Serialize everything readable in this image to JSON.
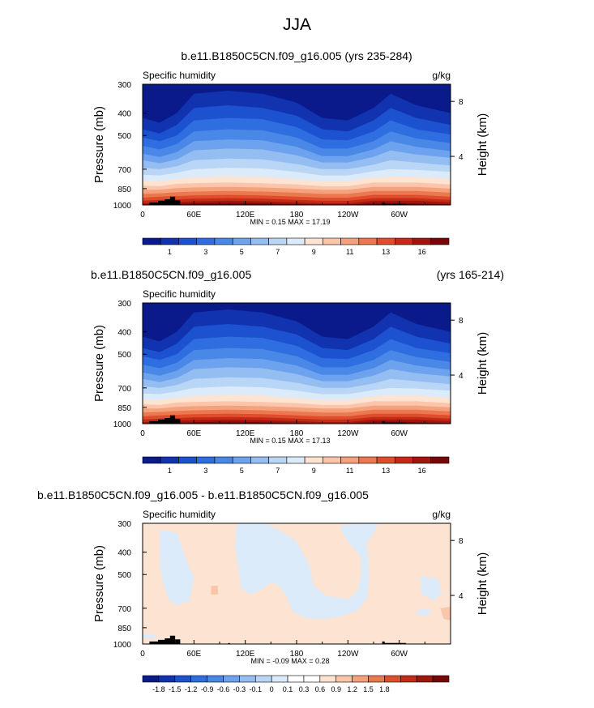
{
  "figure": {
    "title": "JJA"
  },
  "panels": [
    {
      "id": "top",
      "title_center": "b.e11.B1850C5CN.f09_g16.005 (yrs 235-284)",
      "title_left": "",
      "title_right": "",
      "variable": "Specific humidity",
      "units": "g/kg",
      "ylabel": "Pressure (mb)",
      "ylabel_right": "Height (km)",
      "stats": "MIN =  0.15  MAX =  17.19",
      "colorbar": {
        "colors": [
          "#0a1a8a",
          "#1233b0",
          "#1c52cf",
          "#2f6ee0",
          "#4a88e8",
          "#6da3ee",
          "#94bef2",
          "#bad6f6",
          "#dcebfa",
          "#fde3d2",
          "#fac5a9",
          "#f5a17d",
          "#ec7850",
          "#de4e2c",
          "#c52a17",
          "#a0160d",
          "#78070a"
        ],
        "tick_labels": [
          "1",
          "3",
          "5",
          "7",
          "9",
          "11",
          "13",
          "16"
        ],
        "tick_slots": [
          1,
          3,
          5,
          7,
          9,
          11,
          13,
          15
        ]
      }
    },
    {
      "id": "middle",
      "title_center": "",
      "title_left": "b.e11.B1850C5CN.f09_g16.005",
      "title_right": "(yrs 165-214)",
      "variable": "Specific humidity",
      "units": "",
      "ylabel": "Pressure (mb)",
      "ylabel_right": "Height (km)",
      "stats": "MIN =  0.15  MAX =  17.13",
      "colorbar": {
        "colors": [
          "#0a1a8a",
          "#1233b0",
          "#1c52cf",
          "#2f6ee0",
          "#4a88e8",
          "#6da3ee",
          "#94bef2",
          "#bad6f6",
          "#dcebfa",
          "#fde3d2",
          "#fac5a9",
          "#f5a17d",
          "#ec7850",
          "#de4e2c",
          "#c52a17",
          "#a0160d",
          "#78070a"
        ],
        "tick_labels": [
          "1",
          "3",
          "5",
          "7",
          "9",
          "11",
          "13",
          "16"
        ],
        "tick_slots": [
          1,
          3,
          5,
          7,
          9,
          11,
          13,
          15
        ]
      }
    },
    {
      "id": "bottom",
      "title_center": "",
      "title_left": "b.e11.B1850C5CN.f09_g16.005 - b.e11.B1850C5CN.f09_g16.005",
      "title_right": "",
      "variable": "Specific humidity",
      "units": "g/kg",
      "ylabel": "Pressure (mb)",
      "ylabel_right": "Height (km)",
      "stats": "MIN = -0.09  MAX =  0.28",
      "colorbar": {
        "colors": [
          "#0a1a8a",
          "#1233b0",
          "#1c52cf",
          "#2f6ee0",
          "#4a88e8",
          "#6da3ee",
          "#94bef2",
          "#bad6f6",
          "#dcebfa",
          "#ffffff",
          "#ffffff",
          "#fde3d2",
          "#fac5a9",
          "#f5a17d",
          "#ec7850",
          "#de4e2c",
          "#c52a17",
          "#a0160d",
          "#78070a"
        ],
        "tick_labels": [
          "-1.8",
          "-1.5",
          "-1.2",
          "-0.9",
          "-0.6",
          "-0.3",
          "-0.1",
          "0",
          "0.1",
          "0.3",
          "0.6",
          "0.9",
          "1.2",
          "1.5",
          "1.8"
        ],
        "tick_slots": [
          1,
          2,
          3,
          4,
          5,
          6,
          7,
          8,
          9,
          10,
          11,
          12,
          13,
          14,
          15,
          16,
          17
        ]
      }
    }
  ],
  "axes": {
    "pressure_ticks": [
      300,
      400,
      500,
      700,
      850,
      1000
    ],
    "pressure_range": [
      300,
      1000
    ],
    "height_ticks": [
      4,
      8
    ],
    "lon_ticks": [
      {
        "lon": 0,
        "label": "0"
      },
      {
        "lon": 60,
        "label": "60E"
      },
      {
        "lon": 120,
        "label": "120E"
      },
      {
        "lon": 180,
        "label": "180"
      },
      {
        "lon": 240,
        "label": "120W"
      },
      {
        "lon": 300,
        "label": "60W"
      }
    ],
    "lon_range": [
      0,
      360
    ]
  },
  "chart_data": [
    {
      "type": "heatmap",
      "title": "b.e11.B1850C5CN.f09_g16.005 (yrs 235-284)",
      "subtitle": "Specific humidity (g/kg)",
      "xlabel": "",
      "ylabel": "Pressure (mb)",
      "x": [
        0,
        30,
        60,
        90,
        120,
        150,
        180,
        210,
        240,
        270,
        300,
        330,
        360
      ],
      "y": [
        1000,
        925,
        850,
        700,
        500,
        400,
        300
      ],
      "xlim": [
        0,
        360
      ],
      "ylim": [
        1000,
        300
      ],
      "min": 0.15,
      "max": 17.19,
      "values": [
        [
          13,
          14,
          16,
          17,
          17,
          17,
          16,
          15,
          14,
          14,
          15,
          15,
          13
        ],
        [
          10,
          11,
          13,
          14,
          14,
          14,
          13,
          12,
          11,
          12,
          13,
          12,
          10
        ],
        [
          8,
          9,
          11,
          12,
          12,
          12,
          11,
          10,
          9,
          10,
          11,
          10,
          8
        ],
        [
          4,
          5,
          7,
          7.5,
          7.5,
          7.5,
          6.5,
          5.5,
          5,
          6,
          7,
          6,
          4
        ],
        [
          1.5,
          2,
          3,
          3.2,
          3.2,
          3.2,
          2.5,
          2,
          2,
          2.6,
          3,
          2.5,
          1.5
        ],
        [
          0.8,
          1,
          1.6,
          1.8,
          1.8,
          1.8,
          1.3,
          1,
          1,
          1.4,
          1.7,
          1.2,
          0.8
        ],
        [
          0.3,
          0.4,
          0.7,
          0.8,
          0.8,
          0.8,
          0.5,
          0.4,
          0.4,
          0.6,
          0.7,
          0.5,
          0.3
        ]
      ],
      "levels": [
        1,
        2,
        3,
        4,
        5,
        6,
        7,
        8,
        9,
        10,
        11,
        12,
        13,
        14,
        15,
        16
      ]
    },
    {
      "type": "heatmap",
      "title": "b.e11.B1850C5CN.f09_g16.005 (yrs 165-214)",
      "subtitle": "Specific humidity",
      "xlabel": "",
      "ylabel": "Pressure (mb)",
      "x": [
        0,
        30,
        60,
        90,
        120,
        150,
        180,
        210,
        240,
        270,
        300,
        330,
        360
      ],
      "y": [
        1000,
        925,
        850,
        700,
        500,
        400,
        300
      ],
      "xlim": [
        0,
        360
      ],
      "ylim": [
        1000,
        300
      ],
      "min": 0.15,
      "max": 17.13,
      "values": [
        [
          13,
          14,
          16,
          17,
          17,
          17,
          16,
          15,
          14,
          14,
          15,
          15,
          13
        ],
        [
          10,
          11,
          13,
          14,
          14,
          14,
          13,
          12,
          11,
          12,
          13,
          12,
          10
        ],
        [
          8,
          9,
          11,
          12,
          12,
          12,
          11,
          10,
          9,
          10,
          11,
          10,
          8
        ],
        [
          4,
          5,
          7,
          7.5,
          7.5,
          7.5,
          6.5,
          5.5,
          5,
          6,
          7,
          6,
          4
        ],
        [
          1.5,
          2,
          3,
          3.2,
          3.2,
          3.2,
          2.5,
          2,
          2,
          2.6,
          3,
          2.5,
          1.5
        ],
        [
          0.8,
          1,
          1.6,
          1.8,
          1.8,
          1.8,
          1.3,
          1,
          1,
          1.4,
          1.7,
          1.2,
          0.8
        ],
        [
          0.3,
          0.4,
          0.7,
          0.8,
          0.8,
          0.8,
          0.5,
          0.4,
          0.4,
          0.6,
          0.7,
          0.5,
          0.3
        ]
      ],
      "levels": [
        1,
        2,
        3,
        4,
        5,
        6,
        7,
        8,
        9,
        10,
        11,
        12,
        13,
        14,
        15,
        16
      ]
    },
    {
      "type": "heatmap",
      "title": "b.e11.B1850C5CN.f09_g16.005 - b.e11.B1850C5CN.f09_g16.005",
      "subtitle": "Specific humidity (g/kg)",
      "xlabel": "",
      "ylabel": "Pressure (mb)",
      "x": [
        0,
        30,
        60,
        90,
        120,
        150,
        180,
        210,
        240,
        270,
        300,
        330,
        360
      ],
      "y": [
        1000,
        925,
        850,
        700,
        500,
        400,
        300
      ],
      "xlim": [
        0,
        360
      ],
      "ylim": [
        1000,
        300
      ],
      "min": -0.09,
      "max": 0.28,
      "values": [
        [
          0.05,
          0.05,
          0.02,
          0.03,
          -0.02,
          0.02,
          0.03,
          -0.02,
          0.02,
          0.03,
          0.02,
          0.05,
          0.2
        ],
        [
          0.05,
          0.03,
          0.02,
          0.02,
          -0.03,
          0.02,
          -0.02,
          -0.03,
          0.02,
          0.02,
          0.03,
          0.05,
          0.15
        ],
        [
          0.03,
          0.02,
          -0.02,
          0.02,
          -0.03,
          0.02,
          -0.03,
          -0.04,
          0.02,
          0.02,
          -0.03,
          0.03,
          0.05
        ],
        [
          0.02,
          0.02,
          -0.03,
          0.02,
          -0.02,
          0.02,
          -0.03,
          -0.03,
          0.02,
          0.02,
          0.02,
          0.02,
          0.02
        ],
        [
          0.02,
          0.02,
          -0.03,
          0.02,
          -0.02,
          -0.02,
          -0.03,
          -0.02,
          0.02,
          0.02,
          0.02,
          0.02,
          0.02
        ],
        [
          0.02,
          0.01,
          -0.02,
          0.01,
          -0.02,
          -0.02,
          -0.02,
          -0.02,
          0.01,
          0.01,
          0.01,
          0.01,
          0.01
        ],
        [
          0.01,
          0.01,
          -0.01,
          0.01,
          -0.01,
          -0.01,
          -0.02,
          -0.01,
          0.01,
          0.01,
          0.01,
          0.01,
          0.01
        ]
      ],
      "levels": [
        -1.8,
        -1.5,
        -1.2,
        -0.9,
        -0.6,
        -0.3,
        -0.1,
        0,
        0.1,
        0.3,
        0.6,
        0.9,
        1.2,
        1.5,
        1.8
      ]
    }
  ]
}
